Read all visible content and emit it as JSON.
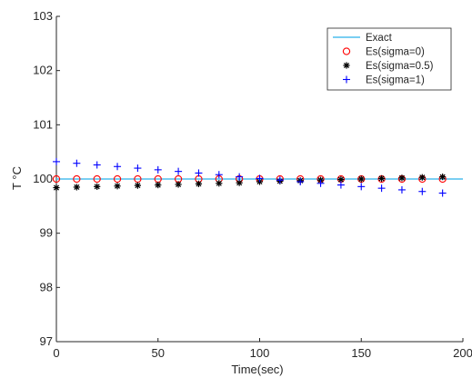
{
  "chart_data": {
    "type": "scatter",
    "title": "",
    "xlabel": "Time(sec)",
    "ylabel": "T °C",
    "xlim": [
      0,
      200
    ],
    "ylim": [
      97,
      103
    ],
    "x_ticks": [
      0,
      50,
      100,
      150,
      200
    ],
    "y_ticks": [
      97,
      98,
      99,
      100,
      101,
      102,
      103
    ],
    "grid": false,
    "legend_position": "top-right",
    "series": [
      {
        "name": "Exact",
        "style": "line",
        "color": "#4DBEEE",
        "x": [
          0,
          200
        ],
        "y": [
          100,
          100
        ]
      },
      {
        "name": "Es(sigma=0)",
        "style": "circle",
        "color": "#FF0000",
        "x": [
          0,
          10,
          20,
          30,
          40,
          50,
          60,
          70,
          80,
          90,
          100,
          110,
          120,
          130,
          140,
          150,
          160,
          170,
          180,
          190
        ],
        "y": [
          100,
          100,
          100,
          100,
          100,
          100,
          100,
          100,
          100,
          100,
          100,
          100,
          100,
          100,
          100,
          100,
          100,
          100,
          100,
          100
        ]
      },
      {
        "name": "Es(sigma=0.5)",
        "style": "asterisk",
        "color": "#000000",
        "x": [
          0,
          10,
          20,
          30,
          40,
          50,
          60,
          70,
          80,
          90,
          100,
          110,
          120,
          130,
          140,
          150,
          160,
          170,
          180,
          190
        ],
        "y": [
          99.84,
          99.85,
          99.86,
          99.87,
          99.88,
          99.89,
          99.9,
          99.91,
          99.92,
          99.93,
          99.95,
          99.96,
          99.97,
          99.98,
          99.99,
          100.0,
          100.01,
          100.02,
          100.03,
          100.04
        ]
      },
      {
        "name": "Es(sigma=1)",
        "style": "plus",
        "color": "#0000FF",
        "x": [
          0,
          10,
          20,
          30,
          40,
          50,
          60,
          70,
          80,
          90,
          100,
          110,
          120,
          130,
          140,
          150,
          160,
          170,
          180,
          190
        ],
        "y": [
          100.32,
          100.29,
          100.26,
          100.23,
          100.2,
          100.17,
          100.14,
          100.11,
          100.08,
          100.04,
          100.01,
          99.98,
          99.95,
          99.92,
          99.89,
          99.86,
          99.83,
          99.8,
          99.77,
          99.74
        ]
      }
    ]
  }
}
